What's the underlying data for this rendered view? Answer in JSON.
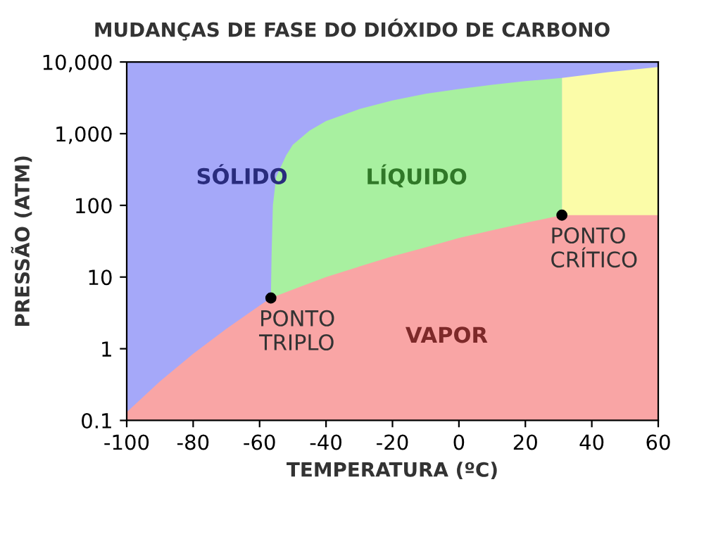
{
  "chart_data": {
    "type": "area",
    "title": "MUDANÇAS DE FASE DO DIÓXIDO DE CARBONO",
    "xlabel": "TEMPERATURA (ºC)",
    "ylabel": "PRESSÃO (ATM)",
    "log": "y",
    "xlim": [
      -100,
      60
    ],
    "ylim": [
      0.1,
      10000
    ],
    "xticks": [
      -100,
      -80,
      -60,
      -40,
      -20,
      0,
      20,
      40,
      60
    ],
    "yticks": [
      {
        "value": 0.1,
        "label": "0.1"
      },
      {
        "value": 1,
        "label": "1"
      },
      {
        "value": 10,
        "label": "10"
      },
      {
        "value": 100,
        "label": "100"
      },
      {
        "value": 1000,
        "label": "1,000"
      },
      {
        "value": 10000,
        "label": "10,000"
      }
    ],
    "grid": false,
    "legend": false,
    "series": [
      {
        "name": "SÓLIDO",
        "color": "#a5a8f9",
        "x": [
          -100,
          60
        ],
        "values": [
          10000,
          10000
        ]
      },
      {
        "color": "#fbfca8",
        "x": [
          31,
          45,
          60
        ],
        "values": [
          6000,
          7200,
          8500
        ]
      },
      {
        "name": "LÍQUIDO",
        "color": "#a8f0a0",
        "x": [
          -56.6,
          -56.4,
          -56,
          -55,
          -52,
          -50,
          -45,
          -40,
          -30,
          -20,
          -10,
          0,
          10,
          20,
          31
        ],
        "values": [
          5.1,
          20,
          100,
          250,
          500,
          700,
          1100,
          1500,
          2200,
          2900,
          3600,
          4200,
          4800,
          5400,
          6000
        ]
      },
      {
        "name": "VAPOR",
        "color": "#f9a5a5",
        "x": [
          -100,
          -90,
          -80,
          -70,
          -60,
          -56.6,
          -50,
          -40,
          -30,
          -20,
          -10,
          0,
          10,
          20,
          31,
          60
        ],
        "values": [
          0.13,
          0.35,
          0.85,
          1.9,
          4.0,
          5.1,
          6.7,
          10,
          14,
          19.5,
          26,
          35,
          45,
          57,
          73,
          73
        ]
      },
      {
        "type": "scatter",
        "color": "#000000",
        "marker": "circle",
        "x": [
          -56.6,
          31
        ],
        "values": [
          5.1,
          73
        ]
      }
    ],
    "annotations": [
      {
        "text": "PONTO\nTRIPLO",
        "x": -56.6,
        "y": 5.1
      },
      {
        "text": "PONTO\nCRÍTICO",
        "x": 31,
        "y": 73
      }
    ]
  }
}
